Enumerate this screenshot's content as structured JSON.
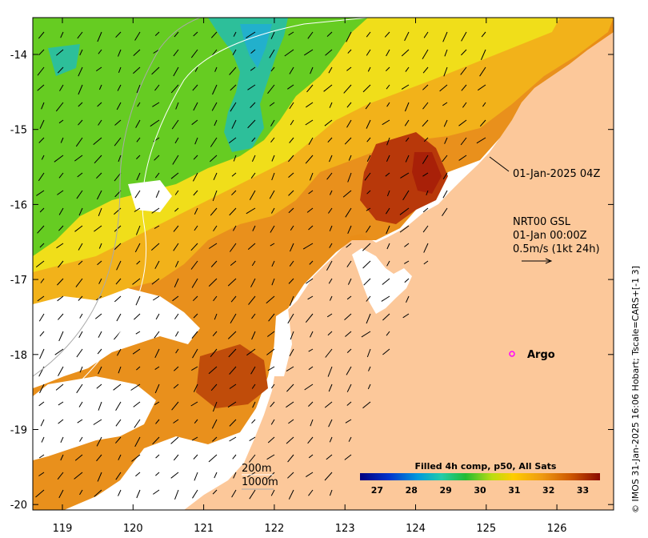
{
  "map": {
    "x_ticks": [
      "119",
      "120",
      "121",
      "122",
      "123",
      "124",
      "125",
      "126"
    ],
    "y_ticks": [
      "-14",
      "-15",
      "-16",
      "-17",
      "-18",
      "-19",
      "-20"
    ],
    "timestamp_label": "01-Jan-2025 04Z",
    "current_info": {
      "line1": "NRT00 GSL",
      "line2": "01-Jan 00:00Z",
      "line3": "0.5m/s (1kt 24h)"
    },
    "argo_label": "Argo",
    "depth_labels": [
      "200m",
      "1000m"
    ],
    "colorbar": {
      "title": "Filled 4h comp, p50, All Sats",
      "ticks": [
        "27",
        "28",
        "29",
        "30",
        "31",
        "32",
        "33"
      ],
      "range": [
        26.5,
        33.5
      ]
    },
    "credit": "© IMOS 31-Jan-2025 16:06 Hobart; Tscale=CARS+[-1 3]",
    "colors": {
      "land": "#fcc89a",
      "no_data": "#ffffff"
    }
  }
}
